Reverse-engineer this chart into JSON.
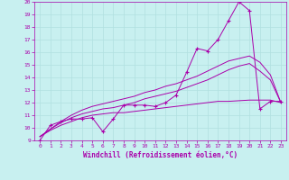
{
  "xlabel": "Windchill (Refroidissement éolien,°C)",
  "xlim": [
    -0.5,
    23.5
  ],
  "ylim": [
    9,
    20
  ],
  "xticks": [
    0,
    1,
    2,
    3,
    4,
    5,
    6,
    7,
    8,
    9,
    10,
    11,
    12,
    13,
    14,
    15,
    16,
    17,
    18,
    19,
    20,
    21,
    22,
    23
  ],
  "yticks": [
    9,
    10,
    11,
    12,
    13,
    14,
    15,
    16,
    17,
    18,
    19,
    20
  ],
  "bg_color": "#c8f0f0",
  "grid_color": "#b0e0e0",
  "line_color": "#aa00aa",
  "line1_x": [
    0,
    1,
    2,
    3,
    4,
    5,
    6,
    7,
    8,
    9,
    10,
    11,
    12,
    13,
    14,
    15,
    16,
    17,
    18,
    19,
    20,
    21,
    22,
    23
  ],
  "line1_y": [
    9.0,
    10.2,
    10.5,
    10.7,
    10.7,
    10.8,
    9.7,
    10.7,
    11.8,
    11.8,
    11.8,
    11.7,
    12.0,
    12.6,
    14.4,
    16.3,
    16.1,
    17.0,
    18.5,
    20.0,
    19.3,
    11.5,
    12.1,
    12.1
  ],
  "line2_x": [
    0,
    1,
    2,
    3,
    4,
    5,
    6,
    7,
    8,
    9,
    10,
    11,
    12,
    13,
    14,
    15,
    16,
    17,
    18,
    19,
    20,
    21,
    22,
    23
  ],
  "line2_y": [
    9.3,
    9.8,
    10.2,
    10.5,
    10.8,
    11.0,
    11.1,
    11.2,
    11.2,
    11.3,
    11.4,
    11.5,
    11.6,
    11.7,
    11.8,
    11.9,
    12.0,
    12.1,
    12.1,
    12.15,
    12.2,
    12.2,
    12.2,
    12.0
  ],
  "line3_x": [
    0,
    1,
    2,
    3,
    4,
    5,
    6,
    7,
    8,
    9,
    10,
    11,
    12,
    13,
    14,
    15,
    16,
    17,
    18,
    19,
    20,
    21,
    22,
    23
  ],
  "line3_y": [
    9.3,
    9.9,
    10.4,
    10.8,
    11.1,
    11.3,
    11.5,
    11.6,
    11.8,
    12.0,
    12.3,
    12.5,
    12.7,
    12.9,
    13.2,
    13.5,
    13.8,
    14.2,
    14.6,
    14.9,
    15.1,
    14.5,
    13.8,
    12.0
  ],
  "line4_x": [
    0,
    1,
    2,
    3,
    4,
    5,
    6,
    7,
    8,
    9,
    10,
    11,
    12,
    13,
    14,
    15,
    16,
    17,
    18,
    19,
    20,
    21,
    22,
    23
  ],
  "line4_y": [
    9.3,
    9.9,
    10.5,
    11.0,
    11.4,
    11.7,
    11.9,
    12.1,
    12.3,
    12.5,
    12.8,
    13.0,
    13.3,
    13.5,
    13.8,
    14.1,
    14.5,
    14.9,
    15.3,
    15.5,
    15.7,
    15.2,
    14.2,
    12.0
  ]
}
